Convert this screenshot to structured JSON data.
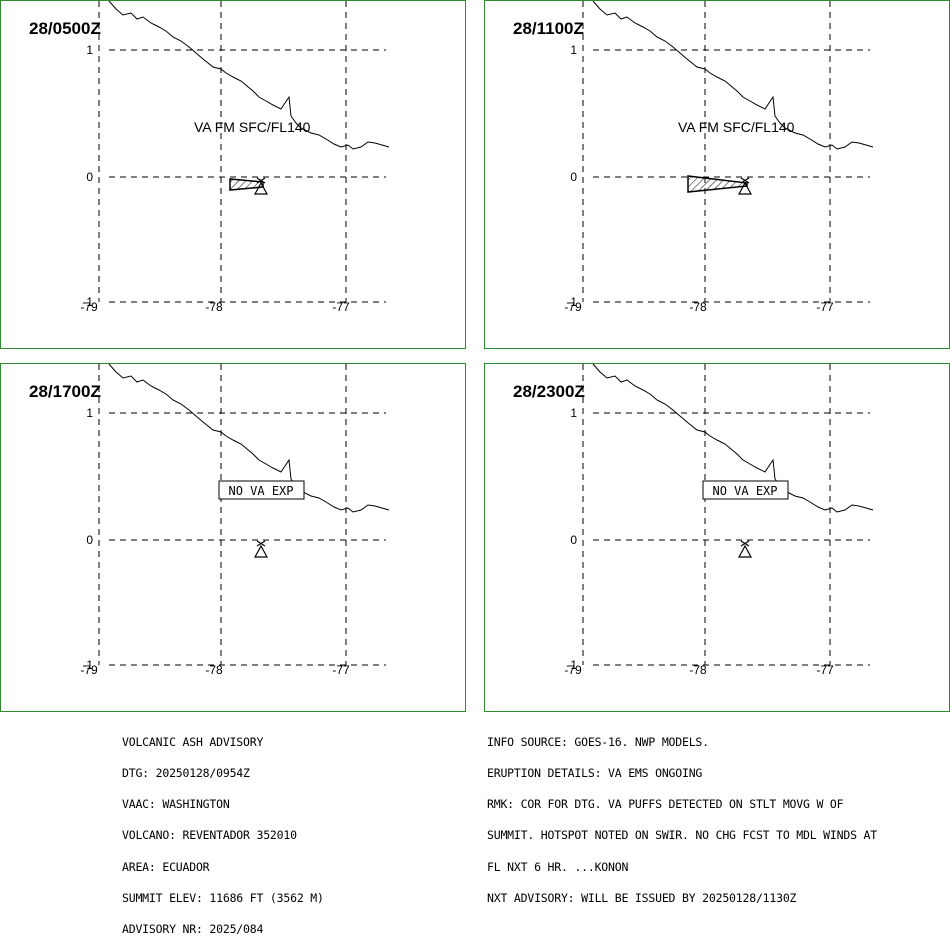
{
  "panels": [
    {
      "time": "28/0500Z",
      "label": "VA FM SFC/FL140",
      "ash": "small"
    },
    {
      "time": "28/1100Z",
      "label": "VA FM SFC/FL140",
      "ash": "large"
    },
    {
      "time": "28/1700Z",
      "label": "NO VA EXP",
      "ash": "none"
    },
    {
      "time": "28/2300Z",
      "label": "NO VA EXP",
      "ash": "none"
    }
  ],
  "axes": {
    "lat_labels": [
      "1",
      "0",
      "-1"
    ],
    "lon_labels": [
      "-79",
      "-78",
      "-77"
    ]
  },
  "colors": {
    "frame": "#2e8b2e",
    "lines": "#000000"
  },
  "advisory_left": [
    "VOLCANIC ASH ADVISORY",
    "DTG: 20250128/0954Z",
    "VAAC: WASHINGTON",
    "VOLCANO: REVENTADOR 352010",
    "AREA: ECUADOR",
    "SUMMIT ELEV: 11686 FT (3562 M)",
    "ADVISORY NR: 2025/084"
  ],
  "advisory_right": [
    "INFO SOURCE: GOES-16. NWP MODELS.",
    "ERUPTION DETAILS: VA EMS ONGOING",
    "RMK: COR FOR DTG. VA PUFFS DETECTED ON STLT MOVG W OF",
    "SUMMIT. HOTSPOT NOTED ON SWIR. NO CHG FCST TO MDL WINDS AT",
    "FL NXT 6 HR. ...KONON",
    "NXT ADVISORY: WILL BE ISSUED BY 20250128/1130Z"
  ]
}
